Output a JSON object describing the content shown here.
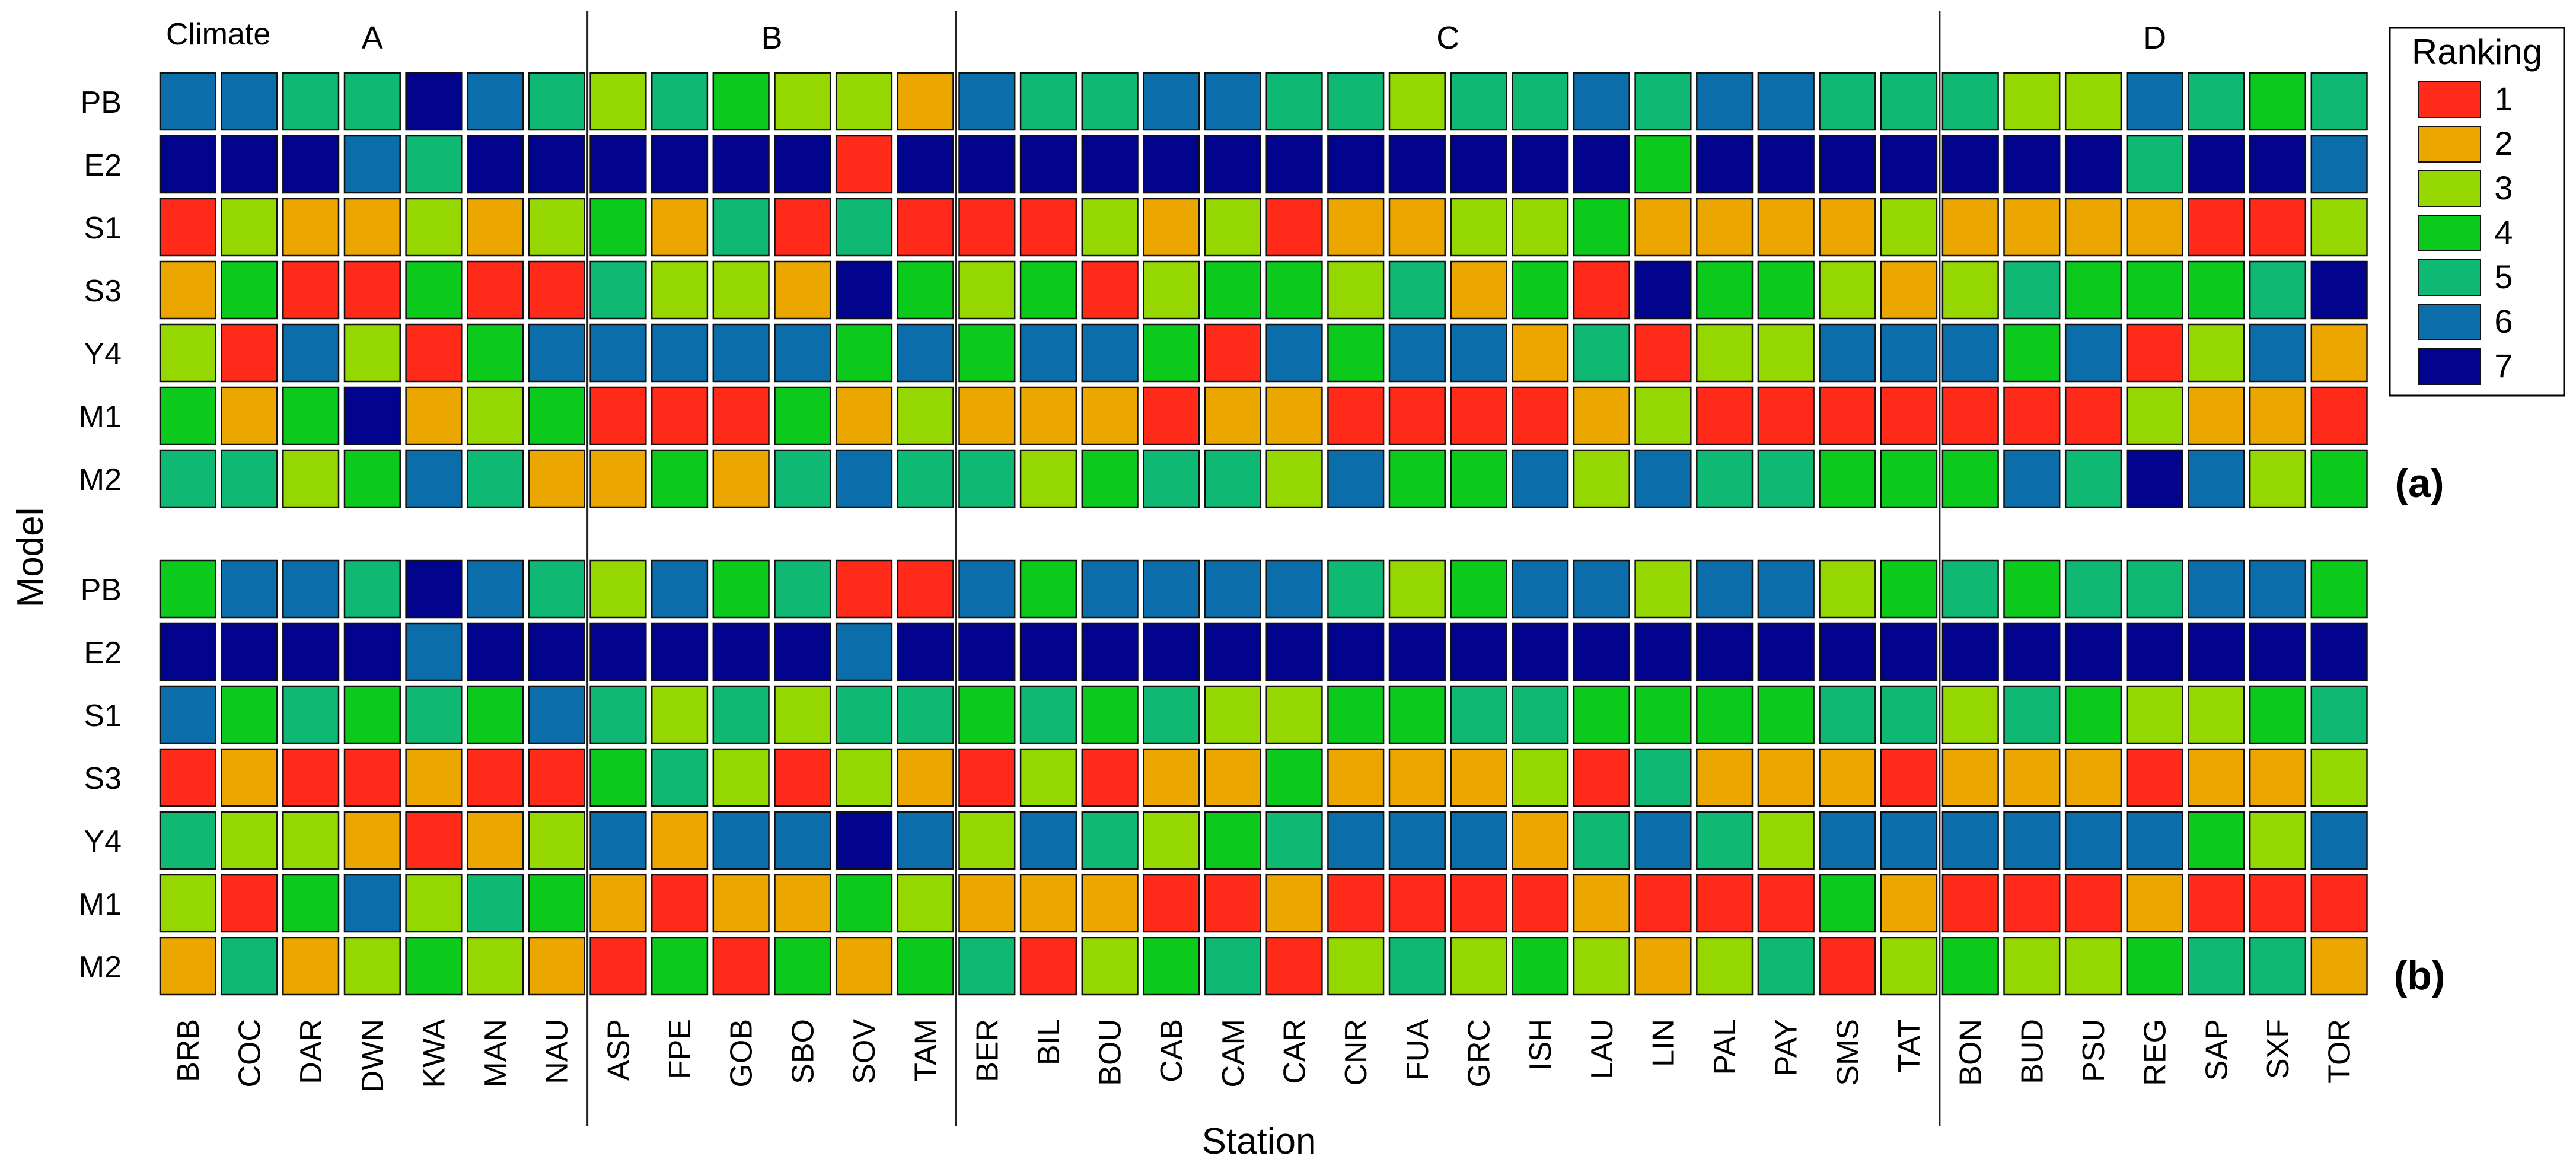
{
  "chart_data": {
    "type": "heatmap",
    "xlabel": "Station",
    "ylabel": "Model",
    "climate_label": "Climate",
    "climate_groups": [
      {
        "name": "A",
        "stations": [
          "BRB",
          "COC",
          "DAR",
          "DWN",
          "KWA",
          "MAN",
          "NAU"
        ]
      },
      {
        "name": "B",
        "stations": [
          "ASP",
          "FPE",
          "GOB",
          "SBO",
          "SOV",
          "TAM"
        ]
      },
      {
        "name": "C",
        "stations": [
          "BER",
          "BIL",
          "BOU",
          "CAB",
          "CAM",
          "CAR",
          "CNR",
          "FUA",
          "GRC",
          "ISH",
          "LAU",
          "LIN",
          "PAL",
          "PAY",
          "SMS",
          "TAT"
        ]
      },
      {
        "name": "D",
        "stations": [
          "BON",
          "BUD",
          "PSU",
          "REG",
          "SAP",
          "SXF",
          "TOR"
        ]
      }
    ],
    "stations": [
      "BRB",
      "COC",
      "DAR",
      "DWN",
      "KWA",
      "MAN",
      "NAU",
      "ASP",
      "FPE",
      "GOB",
      "SBO",
      "SOV",
      "TAM",
      "BER",
      "BIL",
      "BOU",
      "CAB",
      "CAM",
      "CAR",
      "CNR",
      "FUA",
      "GRC",
      "ISH",
      "LAU",
      "LIN",
      "PAL",
      "PAY",
      "SMS",
      "TAT",
      "BON",
      "BUD",
      "PSU",
      "REG",
      "SAP",
      "SXF",
      "TOR"
    ],
    "models": [
      "PB",
      "E2",
      "S1",
      "S3",
      "Y4",
      "M1",
      "M2"
    ],
    "legend": {
      "title": "Ranking",
      "ranks": [
        1,
        2,
        3,
        4,
        5,
        6,
        7
      ],
      "colors": [
        "#ff2a1a",
        "#eba600",
        "#95d700",
        "#0cca1c",
        "#0fb873",
        "#0b6eaa",
        "#03048e"
      ]
    },
    "panels": [
      {
        "label": "(a)",
        "ranks": {
          "PB": [
            6,
            6,
            5,
            5,
            7,
            6,
            5,
            3,
            5,
            4,
            3,
            3,
            2,
            6,
            5,
            5,
            6,
            6,
            5,
            5,
            3,
            5,
            5,
            6,
            5,
            6,
            6,
            5,
            5,
            5,
            3,
            3,
            6,
            5,
            4,
            5
          ],
          "E2": [
            7,
            7,
            7,
            6,
            5,
            7,
            7,
            7,
            7,
            7,
            7,
            1,
            7,
            7,
            7,
            7,
            7,
            7,
            7,
            7,
            7,
            7,
            7,
            7,
            4,
            7,
            7,
            7,
            7,
            7,
            7,
            7,
            5,
            7,
            7,
            6
          ],
          "S1": [
            1,
            3,
            2,
            2,
            3,
            2,
            3,
            4,
            2,
            5,
            1,
            5,
            1,
            1,
            1,
            3,
            2,
            3,
            1,
            2,
            2,
            3,
            3,
            4,
            2,
            2,
            2,
            2,
            3,
            2,
            2,
            2,
            2,
            1,
            1,
            3
          ],
          "S3": [
            2,
            4,
            1,
            1,
            4,
            1,
            1,
            5,
            3,
            3,
            2,
            7,
            4,
            3,
            4,
            1,
            3,
            4,
            4,
            3,
            5,
            2,
            4,
            1,
            7,
            4,
            4,
            3,
            2,
            3,
            5,
            4,
            4,
            4,
            5,
            7
          ],
          "Y4": [
            3,
            1,
            6,
            3,
            1,
            4,
            6,
            6,
            6,
            6,
            6,
            4,
            6,
            4,
            6,
            6,
            4,
            1,
            6,
            4,
            6,
            6,
            2,
            5,
            1,
            3,
            3,
            6,
            6,
            6,
            4,
            6,
            1,
            3,
            6,
            2
          ],
          "M1": [
            4,
            2,
            4,
            7,
            2,
            3,
            4,
            1,
            1,
            1,
            4,
            2,
            3,
            2,
            2,
            2,
            1,
            2,
            2,
            1,
            1,
            1,
            1,
            2,
            3,
            1,
            1,
            1,
            1,
            1,
            1,
            1,
            3,
            2,
            2,
            1
          ],
          "M2": [
            5,
            5,
            3,
            4,
            6,
            5,
            2,
            2,
            4,
            2,
            5,
            6,
            5,
            5,
            3,
            4,
            5,
            5,
            3,
            6,
            4,
            4,
            6,
            3,
            6,
            5,
            5,
            4,
            4,
            4,
            6,
            5,
            7,
            6,
            3,
            4
          ]
        }
      },
      {
        "label": "(b)",
        "ranks": {
          "PB": [
            4,
            6,
            6,
            5,
            7,
            6,
            5,
            3,
            6,
            4,
            5,
            1,
            1,
            6,
            4,
            6,
            6,
            6,
            6,
            5,
            3,
            4,
            6,
            6,
            3,
            6,
            6,
            3,
            4,
            5,
            4,
            5,
            5,
            6,
            6,
            4
          ],
          "E2": [
            7,
            7,
            7,
            7,
            6,
            7,
            7,
            7,
            7,
            7,
            7,
            6,
            7,
            7,
            7,
            7,
            7,
            7,
            7,
            7,
            7,
            7,
            7,
            7,
            7,
            7,
            7,
            7,
            7,
            7,
            7,
            7,
            7,
            7,
            7,
            7
          ],
          "S1": [
            6,
            4,
            5,
            4,
            5,
            4,
            6,
            5,
            3,
            5,
            3,
            5,
            5,
            4,
            5,
            4,
            5,
            3,
            3,
            4,
            4,
            5,
            5,
            4,
            4,
            4,
            4,
            5,
            5,
            3,
            5,
            4,
            3,
            3,
            4,
            5
          ],
          "S3": [
            1,
            2,
            1,
            1,
            2,
            1,
            1,
            4,
            5,
            3,
            1,
            3,
            2,
            1,
            3,
            1,
            2,
            2,
            4,
            2,
            2,
            2,
            3,
            1,
            5,
            2,
            2,
            2,
            1,
            2,
            2,
            2,
            1,
            2,
            2,
            3
          ],
          "Y4": [
            5,
            3,
            3,
            2,
            1,
            2,
            3,
            6,
            2,
            6,
            6,
            7,
            6,
            3,
            6,
            5,
            3,
            4,
            5,
            6,
            6,
            6,
            2,
            5,
            6,
            5,
            3,
            6,
            6,
            6,
            6,
            6,
            6,
            4,
            3,
            6
          ],
          "M1": [
            3,
            1,
            4,
            6,
            3,
            5,
            4,
            2,
            1,
            2,
            2,
            4,
            3,
            2,
            2,
            2,
            1,
            1,
            2,
            1,
            1,
            1,
            1,
            2,
            1,
            1,
            1,
            4,
            2,
            1,
            1,
            1,
            2,
            1,
            1,
            1
          ],
          "M2": [
            2,
            5,
            2,
            3,
            4,
            3,
            2,
            1,
            4,
            1,
            4,
            2,
            4,
            5,
            1,
            3,
            4,
            5,
            1,
            3,
            5,
            3,
            4,
            3,
            2,
            3,
            5,
            1,
            3,
            4,
            3,
            3,
            4,
            5,
            5,
            2
          ]
        }
      }
    ]
  }
}
